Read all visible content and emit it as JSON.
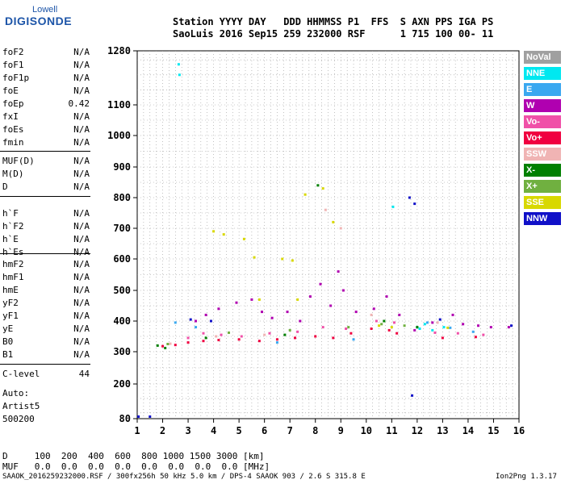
{
  "logo": {
    "line1": "Lowell",
    "line2": "DIGISONDE"
  },
  "header": {
    "line1": "Station YYYY DAY   DDD HHMMSS P1  FFS  S AXN PPS IGA PS",
    "line2": "SaoLuis 2016 Sep15 259 232000 RSF      1 715 100 00- 11"
  },
  "params": {
    "group1": [
      {
        "name": "foF2",
        "value": "N/A"
      },
      {
        "name": "foF1",
        "value": "N/A"
      },
      {
        "name": "foF1p",
        "value": "N/A"
      },
      {
        "name": "foE",
        "value": "N/A"
      },
      {
        "name": "foEp",
        "value": "0.42"
      },
      {
        "name": "fxI",
        "value": "N/A"
      },
      {
        "name": "foEs",
        "value": "N/A"
      },
      {
        "name": "fmin",
        "value": "N/A"
      }
    ],
    "group2": [
      {
        "name": "MUF(D)",
        "value": "N/A"
      },
      {
        "name": "M(D)",
        "value": "N/A"
      },
      {
        "name": "D",
        "value": "N/A"
      }
    ],
    "group3": [
      {
        "name": "h`F",
        "value": "N/A"
      },
      {
        "name": "h`F2",
        "value": "N/A"
      },
      {
        "name": "h`E",
        "value": "N/A"
      },
      {
        "name": "h`Es",
        "value": "N/A"
      }
    ],
    "group4": [
      {
        "name": "hmF2",
        "value": "N/A"
      },
      {
        "name": "hmF1",
        "value": "N/A"
      },
      {
        "name": "hmE",
        "value": "N/A"
      },
      {
        "name": "yF2",
        "value": "N/A"
      },
      {
        "name": "yF1",
        "value": "N/A"
      },
      {
        "name": "yE",
        "value": "N/A"
      },
      {
        "name": "B0",
        "value": "N/A"
      },
      {
        "name": "B1",
        "value": "N/A"
      }
    ],
    "clevel": {
      "name": "C-level",
      "value": "44"
    }
  },
  "auto": {
    "line1": "Auto:",
    "line2": "Artist5",
    "line3": "500200"
  },
  "legend": [
    {
      "label": "NoVal",
      "color": "#a0a0a0"
    },
    {
      "label": "NNE",
      "color": "#00e8f0"
    },
    {
      "label": "E",
      "color": "#3aa8f0"
    },
    {
      "label": "W",
      "color": "#b000b0"
    },
    {
      "label": "Vo-",
      "color": "#f050a8"
    },
    {
      "label": "Vo+",
      "color": "#f00040"
    },
    {
      "label": "SSW",
      "color": "#f0b4b4"
    },
    {
      "label": "X-",
      "color": "#008000"
    },
    {
      "label": "X+",
      "color": "#70b040"
    },
    {
      "label": "SSE",
      "color": "#d8d800"
    },
    {
      "label": "NNW",
      "color": "#1010c8"
    }
  ],
  "bottom": {
    "line1": "D     100  200  400  600  800 1000 1500 3000 [km]",
    "line2": "MUF   0.0  0.0  0.0  0.0  0.0  0.0  0.0  0.0 [MHz]"
  },
  "footer": {
    "left": "SAAOK_2016259232000.RSF / 300fx256h 50 kHz 5.0 km / DPS-4 SAAOK 903 / 2.6 S 315.8 E",
    "right": "Ion2Png 1.3.17"
  },
  "chart_data": {
    "type": "scatter",
    "title": "",
    "xlabel": "",
    "ylabel": "",
    "xlim": [
      1,
      16
    ],
    "ylim": [
      80,
      1280
    ],
    "x_ticks": [
      1,
      2,
      3,
      4,
      5,
      6,
      7,
      8,
      9,
      10,
      11,
      12,
      13,
      14,
      15,
      16
    ],
    "y_ticks": [
      80,
      200,
      300,
      400,
      500,
      600,
      700,
      800,
      900,
      1000,
      1100,
      1280
    ],
    "y_scale": "nonlinear (ionogram virtual height scale)",
    "grid": true,
    "series": [
      {
        "name": "NNE",
        "color": "#00e8f0",
        "points": [
          [
            2.63,
            1235
          ],
          [
            2.66,
            1200
          ],
          [
            12.1,
            375
          ],
          [
            12.3,
            390
          ],
          [
            12.6,
            370
          ],
          [
            13.05,
            380
          ],
          [
            12.0,
            380
          ],
          [
            11.05,
            770
          ]
        ]
      },
      {
        "name": "E",
        "color": "#3aa8f0",
        "points": [
          [
            2.5,
            395
          ],
          [
            3.3,
            380
          ],
          [
            6.5,
            330
          ],
          [
            9.5,
            340
          ],
          [
            12.4,
            395
          ],
          [
            13.3,
            378
          ],
          [
            14.2,
            365
          ]
        ]
      },
      {
        "name": "W",
        "color": "#b000b0",
        "points": [
          [
            3.3,
            400
          ],
          [
            3.7,
            420
          ],
          [
            4.2,
            440
          ],
          [
            4.9,
            460
          ],
          [
            5.5,
            470
          ],
          [
            5.9,
            430
          ],
          [
            6.3,
            410
          ],
          [
            6.9,
            430
          ],
          [
            7.4,
            400
          ],
          [
            7.8,
            480
          ],
          [
            8.2,
            520
          ],
          [
            8.6,
            450
          ],
          [
            8.9,
            560
          ],
          [
            9.1,
            500
          ],
          [
            9.6,
            430
          ],
          [
            10.3,
            440
          ],
          [
            10.8,
            480
          ],
          [
            11.3,
            420
          ],
          [
            11.9,
            370
          ],
          [
            12.6,
            395
          ],
          [
            13.4,
            420
          ],
          [
            13.8,
            390
          ],
          [
            14.4,
            385
          ],
          [
            14.9,
            380
          ],
          [
            15.6,
            380
          ]
        ]
      },
      {
        "name": "Vo-",
        "color": "#f050a8",
        "points": [
          [
            3.0,
            345
          ],
          [
            3.6,
            360
          ],
          [
            4.3,
            355
          ],
          [
            5.1,
            350
          ],
          [
            6.2,
            360
          ],
          [
            7.3,
            365
          ],
          [
            8.3,
            380
          ],
          [
            9.2,
            375
          ],
          [
            10.4,
            400
          ],
          [
            11.1,
            395
          ],
          [
            12.7,
            362
          ],
          [
            13.6,
            360
          ],
          [
            14.6,
            355
          ]
        ]
      },
      {
        "name": "Vo+",
        "color": "#f00040",
        "points": [
          [
            2.0,
            318
          ],
          [
            2.5,
            322
          ],
          [
            3.0,
            330
          ],
          [
            3.6,
            335
          ],
          [
            4.2,
            338
          ],
          [
            5.0,
            340
          ],
          [
            5.8,
            335
          ],
          [
            6.5,
            340
          ],
          [
            7.2,
            345
          ],
          [
            8.0,
            350
          ],
          [
            8.7,
            345
          ],
          [
            9.4,
            360
          ],
          [
            10.2,
            375
          ],
          [
            10.9,
            370
          ],
          [
            11.2,
            360
          ],
          [
            13.0,
            345
          ],
          [
            14.3,
            348
          ]
        ]
      },
      {
        "name": "SSW",
        "color": "#f0b4b4",
        "points": [
          [
            2.3,
            326
          ],
          [
            4.1,
            350
          ],
          [
            6.0,
            355
          ],
          [
            8.4,
            760
          ],
          [
            9.0,
            700
          ],
          [
            10.2,
            420
          ],
          [
            12.8,
            395
          ]
        ]
      },
      {
        "name": "X-",
        "color": "#008000",
        "points": [
          [
            1.8,
            320
          ],
          [
            2.1,
            312
          ],
          [
            3.7,
            345
          ],
          [
            6.8,
            355
          ],
          [
            8.1,
            840
          ],
          [
            10.7,
            400
          ],
          [
            12.0,
            380
          ]
        ]
      },
      {
        "name": "X+",
        "color": "#70b040",
        "points": [
          [
            2.2,
            325
          ],
          [
            4.6,
            362
          ],
          [
            7.0,
            370
          ],
          [
            9.3,
            380
          ],
          [
            10.6,
            390
          ],
          [
            11.5,
            385
          ]
        ]
      },
      {
        "name": "SSE",
        "color": "#d8d800",
        "points": [
          [
            4.0,
            690
          ],
          [
            4.4,
            680
          ],
          [
            5.2,
            665
          ],
          [
            5.6,
            605
          ],
          [
            6.7,
            600
          ],
          [
            7.1,
            595
          ],
          [
            7.6,
            810
          ],
          [
            8.3,
            830
          ],
          [
            8.7,
            720
          ],
          [
            5.8,
            470
          ],
          [
            7.3,
            470
          ],
          [
            10.5,
            385
          ],
          [
            11.0,
            380
          ],
          [
            13.2,
            378
          ]
        ]
      },
      {
        "name": "NNW",
        "color": "#1010c8",
        "points": [
          [
            1.05,
            87
          ],
          [
            1.5,
            87
          ],
          [
            3.1,
            405
          ],
          [
            3.9,
            400
          ],
          [
            12.9,
            405
          ],
          [
            11.7,
            800
          ],
          [
            11.9,
            780
          ],
          [
            15.7,
            385
          ],
          [
            11.8,
            160
          ]
        ]
      }
    ]
  }
}
